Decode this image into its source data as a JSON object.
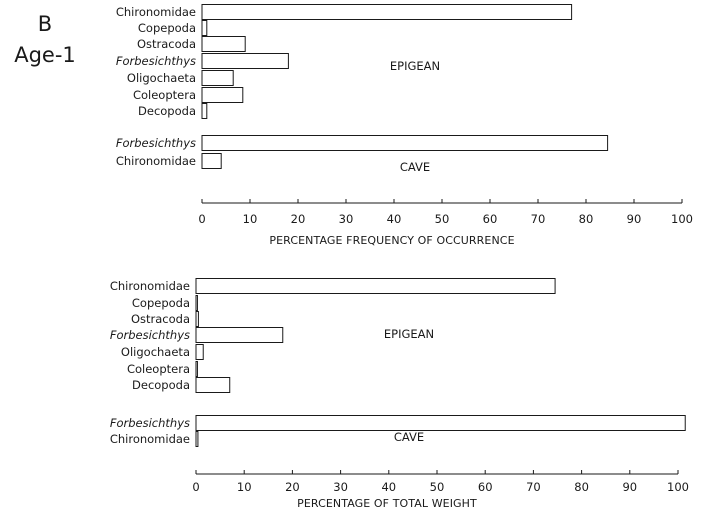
{
  "figure": {
    "panel_letter": "B",
    "panel_subtitle": "Age-1"
  },
  "chart_data": [
    {
      "type": "bar",
      "orientation": "horizontal",
      "xlabel": "PERCENTAGE FREQUENCY OF OCCURRENCE",
      "xlim": [
        0,
        100
      ],
      "xticks": [
        0,
        10,
        20,
        30,
        40,
        50,
        60,
        70,
        80,
        90,
        100
      ],
      "groups": [
        {
          "label": "EPIGEAN",
          "categories": [
            "Chironomidae",
            "Copepoda",
            "Ostracoda",
            "Forbesichthys",
            "Oligochaeta",
            "Coleoptera",
            "Decopoda"
          ],
          "italic": [
            false,
            false,
            false,
            true,
            false,
            false,
            false
          ],
          "values": [
            77,
            1,
            9,
            18,
            6.5,
            8.5,
            1
          ]
        },
        {
          "label": "CAVE",
          "categories": [
            "Forbesichthys",
            "Chironomidae"
          ],
          "italic": [
            true,
            false
          ],
          "values": [
            84.5,
            4
          ]
        }
      ]
    },
    {
      "type": "bar",
      "orientation": "horizontal",
      "xlabel": "PERCENTAGE OF TOTAL WEIGHT",
      "xlim": [
        0,
        100
      ],
      "xticks": [
        0,
        10,
        20,
        30,
        40,
        50,
        60,
        70,
        80,
        90,
        100
      ],
      "groups": [
        {
          "label": "EPIGEAN",
          "categories": [
            "Chironomidae",
            "Copepoda",
            "Ostracoda",
            "Forbesichthys",
            "Oligochaeta",
            "Coleoptera",
            "Decopoda"
          ],
          "italic": [
            false,
            false,
            false,
            true,
            false,
            false,
            false
          ],
          "values": [
            74.5,
            0.3,
            0.5,
            18,
            1.5,
            0.3,
            7
          ]
        },
        {
          "label": "CAVE",
          "categories": [
            "Forbesichthys",
            "Chironomidae"
          ],
          "italic": [
            true,
            false
          ],
          "values": [
            101.5,
            0.4
          ]
        }
      ]
    }
  ]
}
